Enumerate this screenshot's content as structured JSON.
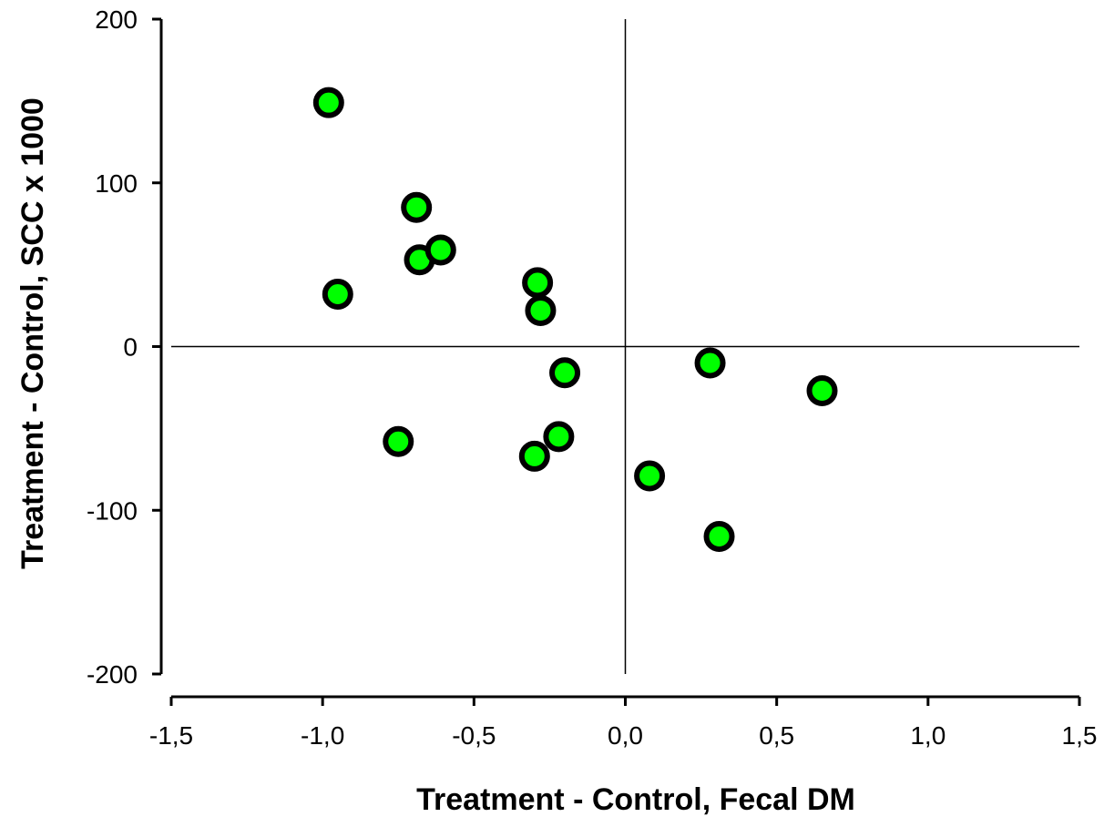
{
  "chart_data": {
    "type": "scatter",
    "title": "",
    "xlabel": "Treatment - Control, Fecal DM",
    "ylabel": "Treatment - Control, SCC x 1000",
    "xlim": [
      -1.5,
      1.5
    ],
    "ylim": [
      -200,
      200
    ],
    "xticks": [
      -1.5,
      -1.0,
      -0.5,
      0.0,
      0.5,
      1.0,
      1.5
    ],
    "xtick_labels": [
      "-1,5",
      "-1,0",
      "-0,5",
      "0,0",
      "0,5",
      "1,0",
      "1,5"
    ],
    "yticks": [
      200,
      100,
      0,
      -100,
      -200
    ],
    "ytick_labels": [
      "200",
      "100",
      "0",
      "-100",
      "-200"
    ],
    "grid": false,
    "reference_lines": {
      "x": 0,
      "y": 0
    },
    "marker": {
      "fill": "#00ff00",
      "edge": "#000000"
    },
    "points": [
      {
        "x": -0.98,
        "y": 149
      },
      {
        "x": -0.95,
        "y": 32
      },
      {
        "x": -0.69,
        "y": 85
      },
      {
        "x": -0.68,
        "y": 53
      },
      {
        "x": -0.61,
        "y": 59
      },
      {
        "x": -0.29,
        "y": 39
      },
      {
        "x": -0.28,
        "y": 22
      },
      {
        "x": -0.2,
        "y": -16
      },
      {
        "x": -0.22,
        "y": -55
      },
      {
        "x": -0.3,
        "y": -67
      },
      {
        "x": -0.75,
        "y": -58
      },
      {
        "x": 0.28,
        "y": -10
      },
      {
        "x": 0.65,
        "y": -27
      },
      {
        "x": 0.08,
        "y": -79
      },
      {
        "x": 0.31,
        "y": -116
      }
    ]
  }
}
